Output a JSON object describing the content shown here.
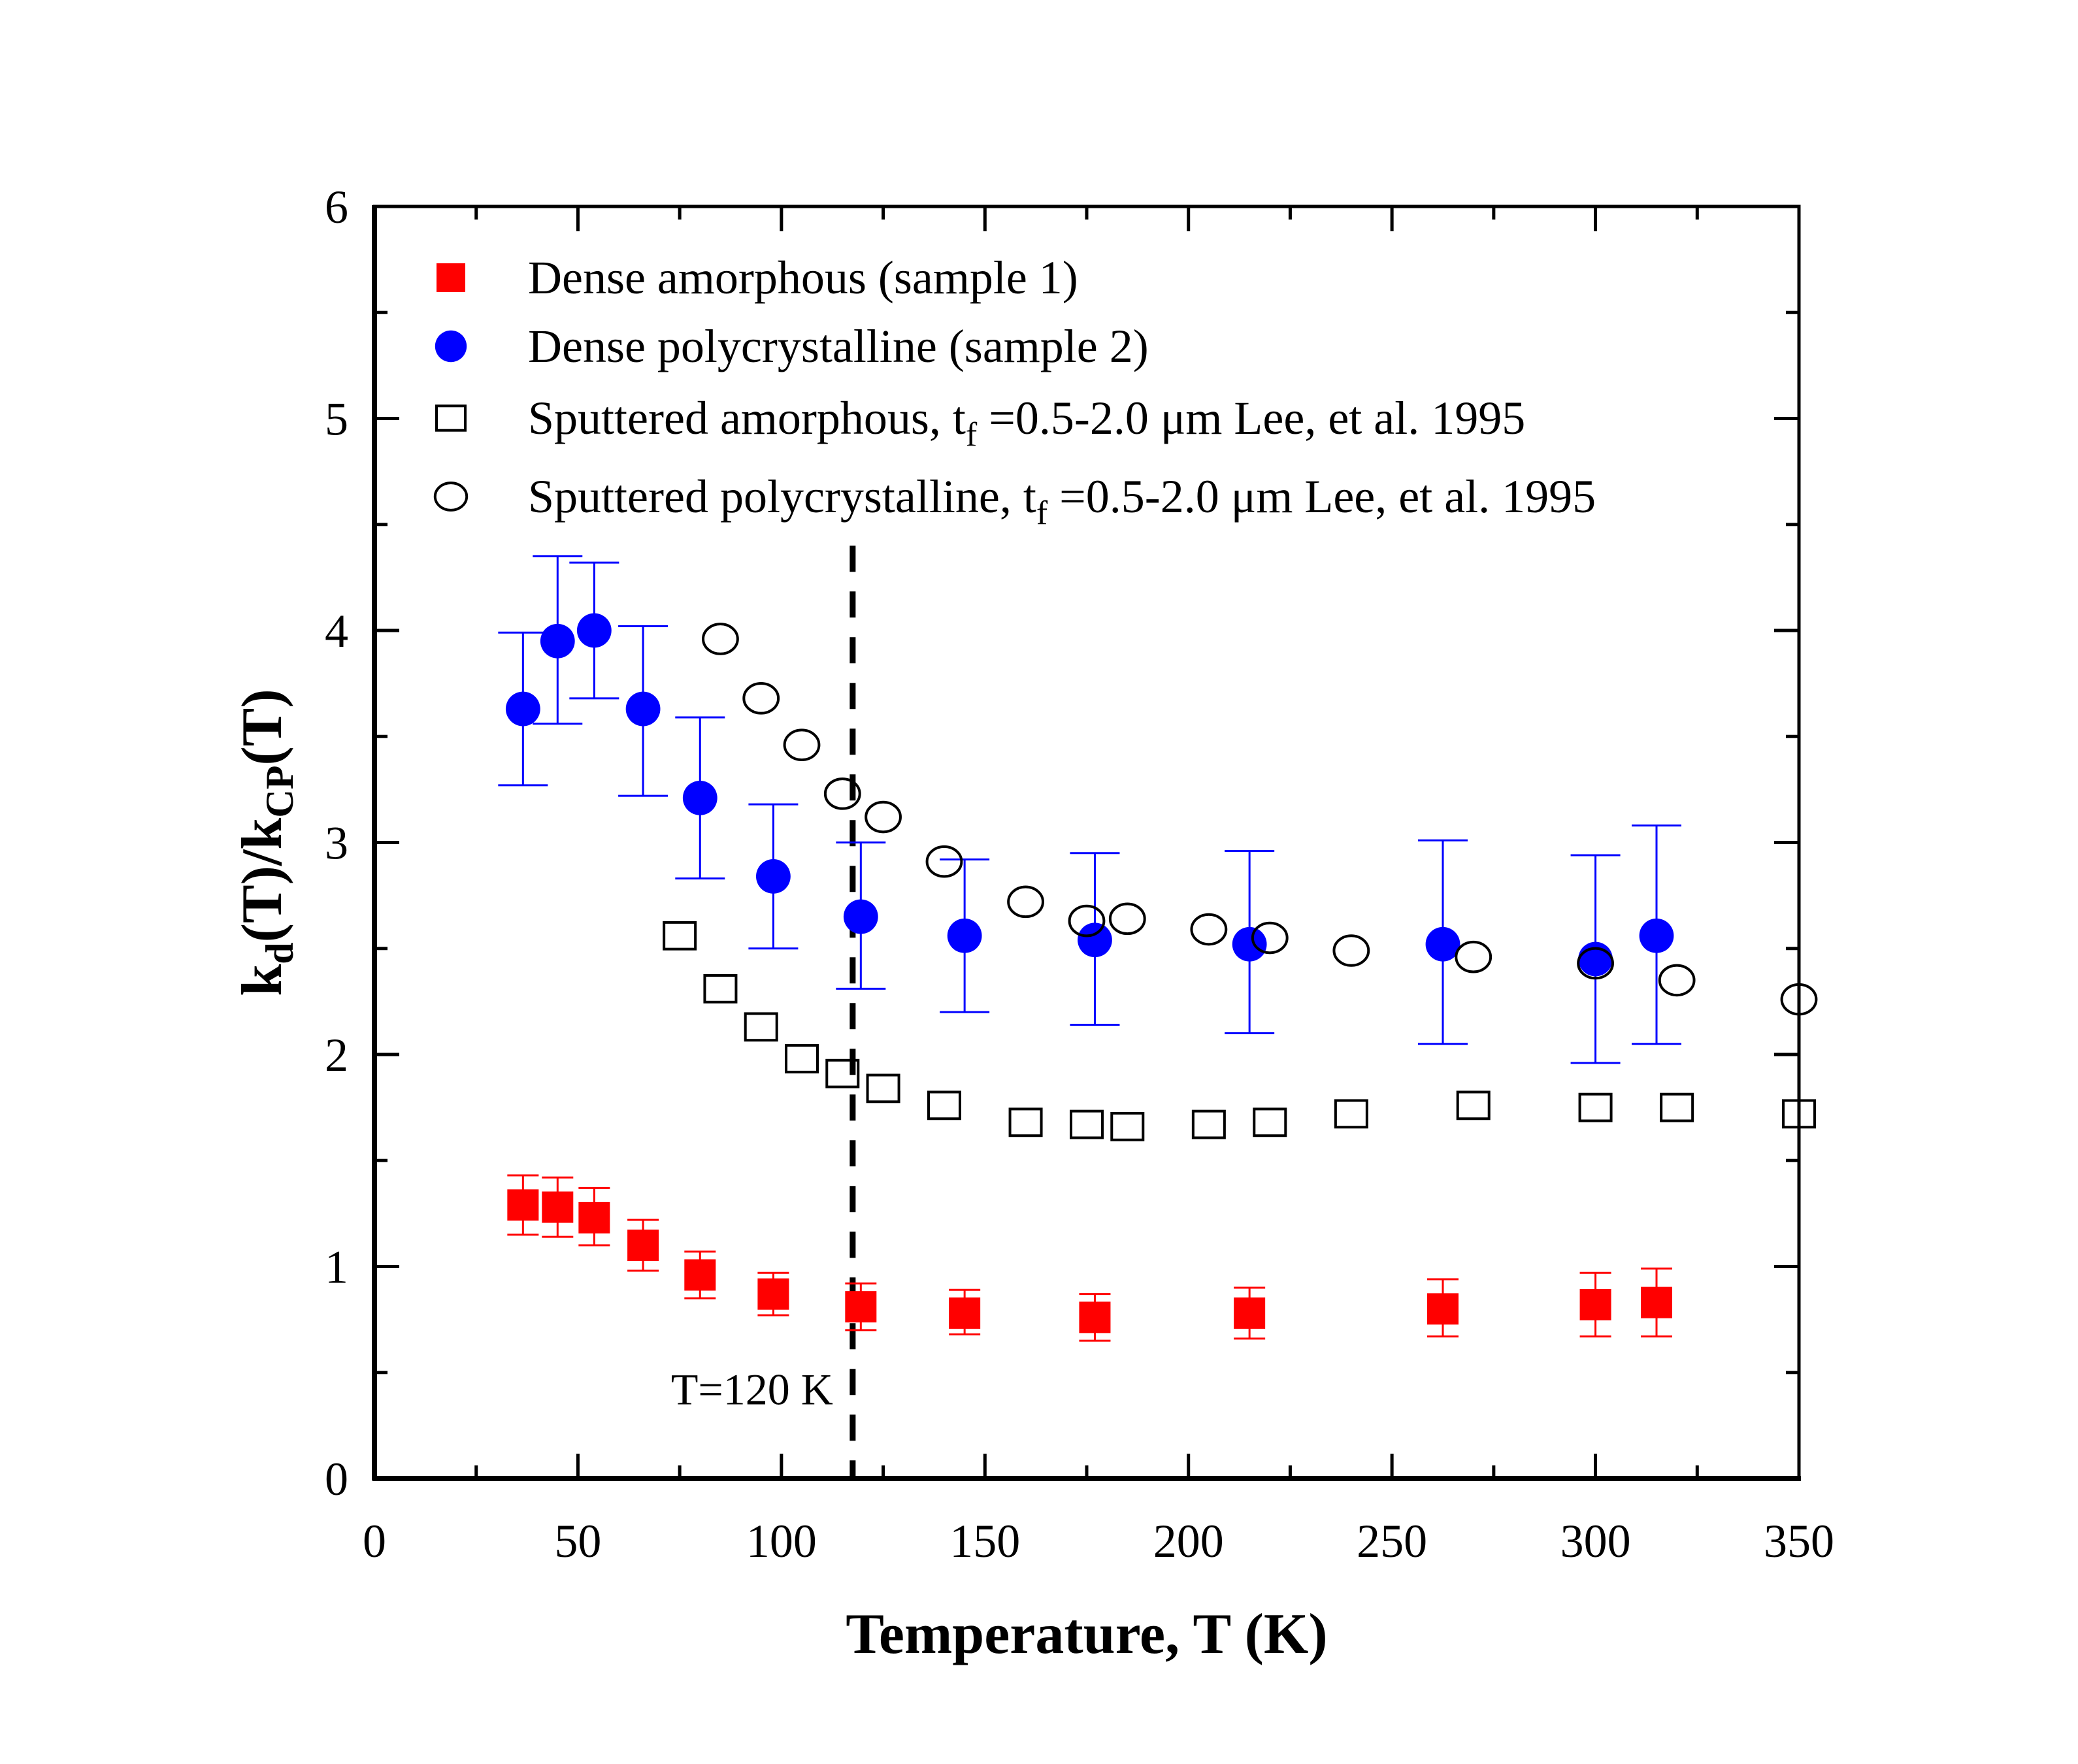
{
  "chart_data": {
    "type": "scatter",
    "title": "",
    "xlabel": "Temperature, T (K)",
    "ylabel": {
      "main": "k",
      "sub1": "d",
      "mid": "(T)/k",
      "sub2": "CP",
      "end": "(T)"
    },
    "xlim": [
      0,
      350
    ],
    "ylim": [
      0,
      6
    ],
    "x_ticks": [
      0,
      50,
      100,
      150,
      200,
      250,
      300,
      350
    ],
    "y_ticks": [
      0,
      1,
      2,
      3,
      4,
      5,
      6
    ],
    "grid": false,
    "legend_position": "top-left",
    "annotations": [
      {
        "text": "T=120 K",
        "type": "vertical-dashed-line",
        "x": 117.5
      }
    ],
    "series": [
      {
        "name": "Dense amorphous (sample 1)",
        "marker": "filled-square",
        "color": "#ff0000",
        "x": [
          36.5,
          45,
          54,
          66,
          80,
          98,
          119.5,
          145,
          177,
          215,
          262.5,
          300,
          315
        ],
        "y": [
          1.29,
          1.28,
          1.23,
          1.1,
          0.96,
          0.87,
          0.81,
          0.78,
          0.76,
          0.78,
          0.8,
          0.82,
          0.83
        ],
        "y_low": [
          1.15,
          1.14,
          1.1,
          0.98,
          0.85,
          0.77,
          0.7,
          0.68,
          0.65,
          0.66,
          0.67,
          0.67,
          0.67
        ],
        "y_high": [
          1.43,
          1.42,
          1.37,
          1.22,
          1.07,
          0.97,
          0.92,
          0.89,
          0.87,
          0.9,
          0.94,
          0.97,
          0.99
        ]
      },
      {
        "name": "Dense polycrystalline (sample 2)",
        "marker": "filled-circle",
        "color": "#0000ff",
        "x": [
          36.5,
          45,
          54,
          66,
          80,
          98,
          119.5,
          145,
          177,
          215,
          262.5,
          300,
          315
        ],
        "y": [
          3.63,
          3.95,
          4.0,
          3.63,
          3.21,
          2.84,
          2.65,
          2.56,
          2.54,
          2.52,
          2.52,
          2.45,
          2.56
        ],
        "y_low": [
          3.27,
          3.56,
          3.68,
          3.22,
          2.83,
          2.5,
          2.31,
          2.2,
          2.14,
          2.1,
          2.05,
          1.96,
          2.05
        ],
        "y_high": [
          3.99,
          4.35,
          4.32,
          4.02,
          3.59,
          3.18,
          3.0,
          2.92,
          2.95,
          2.96,
          3.01,
          2.94,
          3.08
        ]
      },
      {
        "name": "Sputtered amorphous, t_f =0.5-2.0 μm Lee, et al. 1995",
        "marker": "open-square",
        "color": "#000000",
        "x": [
          75,
          85,
          95,
          105,
          115,
          125,
          140,
          160,
          175,
          185,
          205,
          220,
          240,
          270,
          300,
          320,
          350
        ],
        "y": [
          2.56,
          2.31,
          2.13,
          1.98,
          1.91,
          1.84,
          1.76,
          1.68,
          1.67,
          1.66,
          1.67,
          1.68,
          1.72,
          1.76,
          1.75,
          1.75,
          1.72
        ]
      },
      {
        "name": "Sputtered polycrystalline, t_f =0.5-2.0 μm Lee, et al. 1995",
        "marker": "open-circle",
        "color": "#000000",
        "x": [
          85,
          95,
          105,
          115,
          125,
          140,
          160,
          175,
          185,
          205,
          220,
          240,
          270,
          300,
          320,
          350
        ],
        "y": [
          3.96,
          3.68,
          3.46,
          3.23,
          3.12,
          2.91,
          2.72,
          2.63,
          2.64,
          2.59,
          2.55,
          2.49,
          2.46,
          2.43,
          2.35,
          2.26
        ]
      }
    ],
    "legend": [
      {
        "marker": "filled-square",
        "color": "#ff0000",
        "pre": "Dense amorphous (sample 1)",
        "sub": "",
        "post": ""
      },
      {
        "marker": "filled-circle",
        "color": "#0000ff",
        "pre": "Dense polycrystalline (sample 2)",
        "sub": "",
        "post": ""
      },
      {
        "marker": "open-square",
        "color": "#000000",
        "pre": "Sputtered amorphous, t",
        "sub": "f",
        "post": " =0.5-2.0 μm Lee, et al. 1995"
      },
      {
        "marker": "open-circle",
        "color": "#000000",
        "pre": "Sputtered polycrystalline, t",
        "sub": "f",
        "post": " =0.5-2.0 μm Lee, et al. 1995"
      }
    ]
  }
}
